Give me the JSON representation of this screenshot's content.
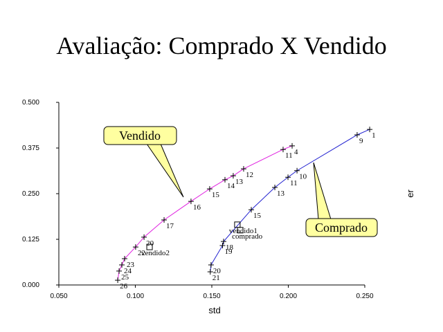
{
  "chart_data": {
    "type": "scatter",
    "title": "Avaliação: Comprado X Vendido",
    "x_label": "std",
    "y_label": "er",
    "xlim": [
      0.05,
      0.25
    ],
    "ylim": [
      0,
      0.5
    ],
    "xticks": [
      {
        "value": 0.05,
        "label": "0.050"
      },
      {
        "value": 0.1,
        "label": "0.100"
      },
      {
        "value": 0.15,
        "label": "0.150"
      },
      {
        "value": 0.2,
        "label": "0.200"
      },
      {
        "value": 0.25,
        "label": "0.250"
      }
    ],
    "yticks": [
      {
        "value": 0,
        "label": "0.000"
      },
      {
        "value": 0.125,
        "label": "0.125"
      },
      {
        "value": 0.25,
        "label": "0.250"
      },
      {
        "value": 0.375,
        "label": "0.375"
      },
      {
        "value": 0.5,
        "label": "0.500"
      }
    ],
    "series": [
      {
        "name": "Vendido",
        "color": "#e020e0",
        "x": [
          0.0885,
          0.0894,
          0.0912,
          0.093,
          0.1002,
          0.1057,
          0.1188,
          0.1364,
          0.1486,
          0.1586,
          0.164,
          0.1708,
          0.1966,
          0.2025
        ],
        "y": [
          0.013,
          0.038,
          0.055,
          0.072,
          0.104,
          0.131,
          0.178,
          0.229,
          0.263,
          0.288,
          0.299,
          0.318,
          0.371,
          0.381
        ],
        "labels": [
          "26",
          "25",
          "24",
          "23",
          "22",
          "20",
          "17",
          "16",
          "15",
          "14",
          "13",
          "12",
          "11",
          "4"
        ]
      },
      {
        "name": "Comprado",
        "color": "#2020d0",
        "x": [
          0.149,
          0.1495,
          0.157,
          0.1577,
          0.1758,
          0.1912,
          0.1998,
          0.2057,
          0.245,
          0.2532
        ],
        "y": [
          0.036,
          0.055,
          0.108,
          0.119,
          0.206,
          0.267,
          0.295,
          0.313,
          0.411,
          0.426
        ],
        "labels": [
          "21",
          "20",
          "19",
          "18",
          "15",
          "13",
          "11",
          "10",
          "9",
          "1"
        ]
      }
    ],
    "markers": [
      {
        "label": "vendido2",
        "x": 0.1093,
        "y": 0.104
      },
      {
        "label": "vendido1",
        "x": 0.1667,
        "y": 0.165
      },
      {
        "label": "comprado",
        "x": 0.1686,
        "y": 0.15
      }
    ]
  }
}
